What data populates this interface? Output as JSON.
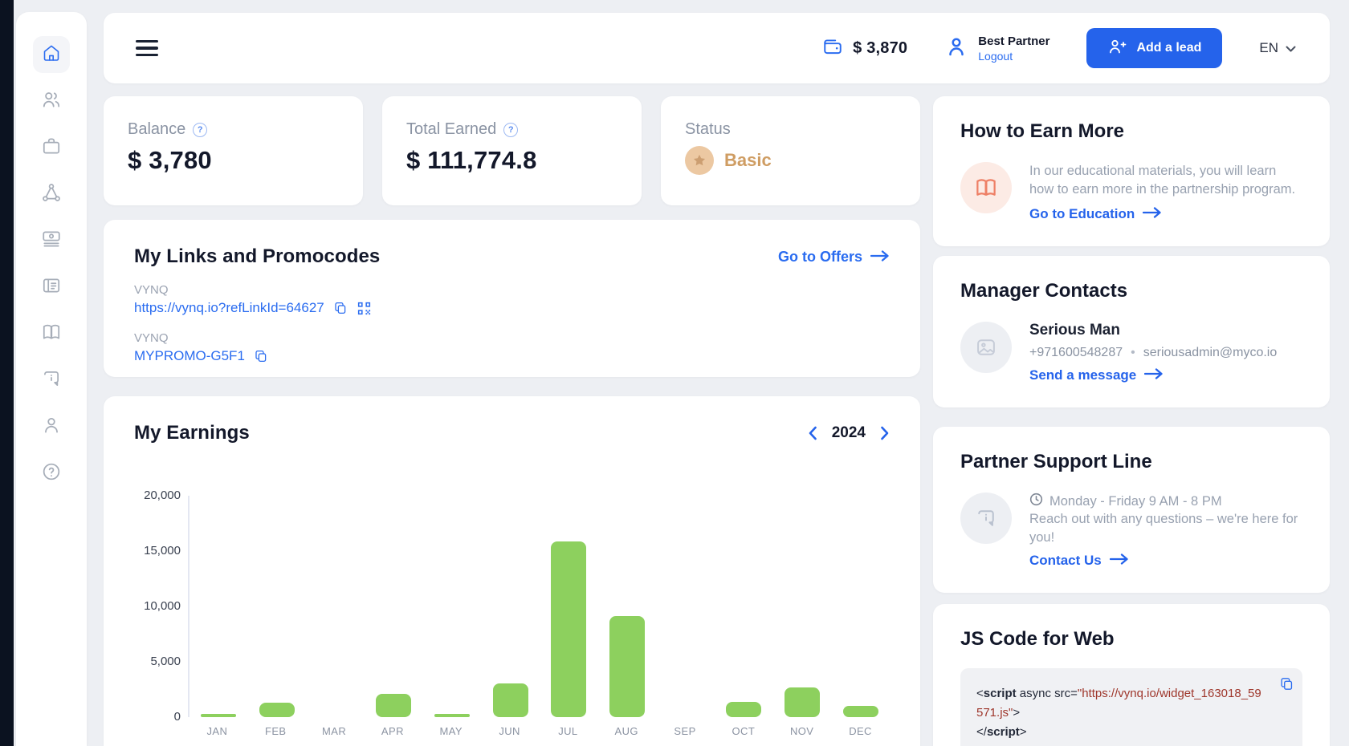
{
  "app": {
    "language": "EN"
  },
  "header": {
    "wallet_balance": "$ 3,870",
    "user_name": "Best Partner",
    "logout_label": "Logout",
    "add_lead_label": "Add a lead"
  },
  "sidebar": {
    "items": [
      {
        "icon": "home-icon",
        "active": true
      },
      {
        "icon": "users-icon",
        "active": false
      },
      {
        "icon": "briefcase-icon",
        "active": false
      },
      {
        "icon": "network-icon",
        "active": false
      },
      {
        "icon": "cash-icon",
        "active": false
      },
      {
        "icon": "news-icon",
        "active": false
      },
      {
        "icon": "book-icon",
        "active": false
      },
      {
        "icon": "info-chat-icon",
        "active": false
      },
      {
        "icon": "person-icon",
        "active": false
      },
      {
        "icon": "help-icon",
        "active": false
      }
    ]
  },
  "stats": {
    "balance": {
      "label": "Balance",
      "value": "$ 3,780"
    },
    "total_earned": {
      "label": "Total Earned",
      "value": "$ 111,774.8"
    },
    "status": {
      "label": "Status",
      "value": "Basic",
      "accent_color": "#cf9d63"
    }
  },
  "links_section": {
    "title": "My Links and Promocodes",
    "offers_link": "Go to Offers",
    "items": [
      {
        "label": "VYNQ",
        "value": "https://vynq.io?refLinkId=64627"
      },
      {
        "label": "VYNQ",
        "value": "MYPROMO-G5F1"
      }
    ]
  },
  "earnings": {
    "title": "My Earnings",
    "year": "2024"
  },
  "chart_data": {
    "type": "bar",
    "title": "My Earnings",
    "categories": [
      "JAN",
      "FEB",
      "MAR",
      "APR",
      "MAY",
      "JUN",
      "JUL",
      "AUG",
      "SEP",
      "OCT",
      "NOV",
      "DEC"
    ],
    "values": [
      300,
      1300,
      0,
      2100,
      300,
      3050,
      15850,
      9150,
      0,
      1400,
      2650,
      1000
    ],
    "xlabel": "",
    "ylabel": "",
    "ylim": [
      0,
      20000
    ],
    "yticks": [
      0,
      5000,
      10000,
      15000,
      20000
    ],
    "ytick_labels": [
      "0",
      "5,000",
      "10,000",
      "15,000",
      "20,000"
    ],
    "bar_color": "#8dd05e",
    "grid": false,
    "legend_position": "none"
  },
  "earn_more": {
    "title": "How to Earn More",
    "text": "In our educational materials, you will learn how to earn more in the partnership program.",
    "link": "Go to Education"
  },
  "manager": {
    "title": "Manager Contacts",
    "name": "Serious Man",
    "phone": "+971600548287",
    "separator": "•",
    "email": "seriousadmin@myco.io",
    "link": "Send a message"
  },
  "support": {
    "title": "Partner Support Line",
    "hours": "Monday - Friday 9 AM - 8 PM",
    "text": "Reach out with any questions – we're here for you!",
    "link": "Contact Us"
  },
  "js_code": {
    "title": "JS Code for Web",
    "open_bracket": "<",
    "tag": "script",
    "attrs": " async src=",
    "url": "\"https://vynq.io/widget_163018_59571.js\"",
    "close_bracket": ">",
    "closing_open": "</"
  }
}
